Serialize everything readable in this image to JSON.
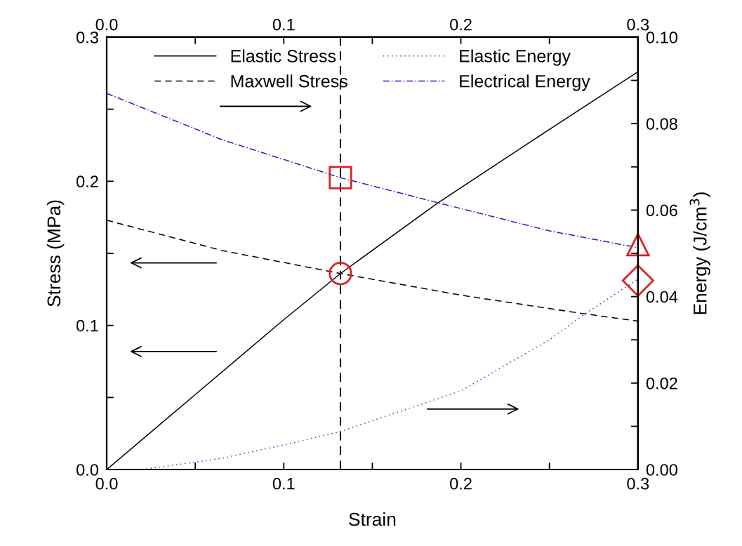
{
  "chart_data": {
    "type": "line",
    "xlabel": "Strain",
    "ylabel": "Stress (MPa)",
    "y2label": "Energy (J/cm$^{3}$)",
    "xlim": [
      0,
      0.3
    ],
    "xticks": [
      {
        "value": 0,
        "label": "0.0"
      },
      {
        "value": 0.05,
        "label": null
      },
      {
        "value": 0.1,
        "label": "0.1"
      },
      {
        "value": 0.15,
        "label": null
      },
      {
        "value": 0.2,
        "label": "0.2"
      },
      {
        "value": 0.25,
        "label": null
      },
      {
        "value": 0.3,
        "label": "0.3"
      }
    ],
    "x2lim": [
      0,
      0.3
    ],
    "x2ticks": [
      {
        "value": 0,
        "label": "0.0"
      },
      {
        "value": 0.05,
        "label": null
      },
      {
        "value": 0.1,
        "label": "0.1"
      },
      {
        "value": 0.15,
        "label": null
      },
      {
        "value": 0.2,
        "label": "0.2"
      },
      {
        "value": 0.25,
        "label": null
      },
      {
        "value": 0.3,
        "label": "0.3"
      }
    ],
    "ylim": [
      0,
      0.3
    ],
    "yticks": [
      {
        "value": 0,
        "label": "0.0"
      },
      {
        "value": 0.05,
        "label": null
      },
      {
        "value": 0.1,
        "label": "0.1"
      },
      {
        "value": 0.15,
        "label": null
      },
      {
        "value": 0.2,
        "label": "0.2"
      },
      {
        "value": 0.25,
        "label": null
      },
      {
        "value": 0.3,
        "label": "0.3"
      }
    ],
    "y2lim": [
      0,
      0.1
    ],
    "y2ticks": [
      {
        "value": 0,
        "label": "0.00"
      },
      {
        "value": 0.01,
        "label": null
      },
      {
        "value": 0.02,
        "label": "0.02"
      },
      {
        "value": 0.03,
        "label": null
      },
      {
        "value": 0.04,
        "label": "0.04"
      },
      {
        "value": 0.05,
        "label": null
      },
      {
        "value": 0.06,
        "label": "0.06"
      },
      {
        "value": 0.07,
        "label": null
      },
      {
        "value": 0.08,
        "label": "0.08"
      },
      {
        "value": 0.09,
        "label": null
      },
      {
        "value": 0.1,
        "label": "0.10"
      }
    ],
    "grid": false,
    "legend": "top",
    "series": [
      {
        "name": "Elastic Stress",
        "color": "#000000",
        "line_style": "solid",
        "x": [
          0,
          0.05,
          0.1,
          0.132,
          0.187,
          0.25,
          0.3
        ],
        "values": [
          0,
          0.052,
          0.104,
          0.136,
          0.185,
          0.236,
          0.276
        ]
      },
      {
        "name": "Maxwell Stress",
        "color": "#000000",
        "line_style": "dashed",
        "x": [
          0,
          0.065,
          0.132,
          0.2,
          0.27,
          0.3
        ],
        "values": [
          0.173,
          0.152,
          0.136,
          0.121,
          0.108,
          0.103
        ]
      },
      {
        "name": "Elastic Energy",
        "color": "#4040c0",
        "line_style": "dotted",
        "axis": "y2",
        "x": [
          0.02,
          0.065,
          0.1,
          0.132,
          0.2,
          0.25,
          0.27,
          0.3
        ],
        "values": [
          0,
          0.0026,
          0.0057,
          0.0088,
          0.0182,
          0.03,
          0.036,
          0.044
        ]
      },
      {
        "name": "Electrical Energy",
        "color": "#2020d0",
        "line_style": "dashdot",
        "axis": "y2",
        "x": [
          0,
          0.065,
          0.132,
          0.187,
          0.25,
          0.3
        ],
        "values": [
          0.087,
          0.0763,
          0.0675,
          0.0617,
          0.0552,
          0.0513
        ]
      },
      {
        "type": "scatter",
        "marker": "square",
        "color": "#e02020",
        "axis": "y2",
        "x": [
          0.132
        ],
        "values": [
          0.0675
        ]
      },
      {
        "type": "scatter",
        "marker": "circle",
        "color": "#e02020",
        "x": [
          0.132
        ],
        "values": [
          0.136
        ]
      },
      {
        "type": "scatter",
        "marker": "triangle",
        "color": "#e02020",
        "axis": "y2",
        "x": [
          0.3
        ],
        "values": [
          0.052
        ]
      },
      {
        "type": "scatter",
        "marker": "diamond",
        "color": "#e02020",
        "axis": "y2",
        "x": [
          0.3
        ],
        "values": [
          0.0437
        ]
      }
    ],
    "ref_lines": [
      {
        "axis": "x",
        "value": 0.132,
        "color": "#000000",
        "line_style": "dashed"
      }
    ]
  }
}
